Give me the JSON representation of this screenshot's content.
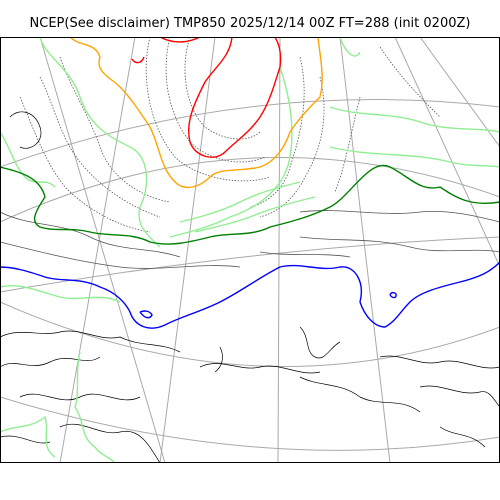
{
  "title": "NCEP(See disclaimer) TMP850 2025/12/14 00Z FT=288 (init 0200Z)",
  "colors": {
    "background": "#ffffff",
    "frame": "#000000",
    "graticule": "#a9a9a9",
    "coastline": "#000000",
    "contour_light": "#555555",
    "isotherm_green_light": "#90ee90",
    "isotherm_green": "#008000",
    "isotherm_orange": "#ffa500",
    "isotherm_red": "#ff0000",
    "isotherm_blue": "#0000ff"
  }
}
